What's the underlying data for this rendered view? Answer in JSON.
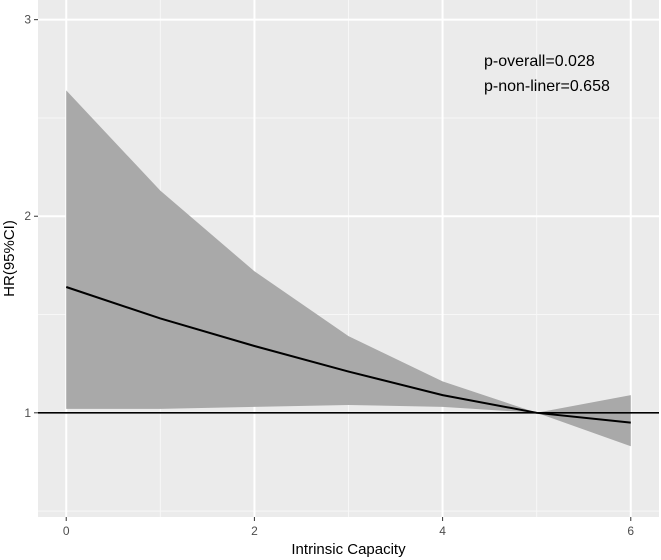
{
  "chart_data": {
    "type": "line",
    "xlabel": "Intrinsic Capacity",
    "ylabel": "HR(95%CI)",
    "xlim": [
      -0.3,
      6.3
    ],
    "ylim": [
      0.47,
      3.1
    ],
    "x_ticks": [
      0,
      2,
      4,
      6
    ],
    "x_tick_labels": [
      "0",
      "2",
      "4",
      "6"
    ],
    "y_ticks": [
      1,
      2,
      3
    ],
    "y_tick_labels": [
      "1",
      "2",
      "3"
    ],
    "grid": true,
    "background": "#ebebeb",
    "annotations": [
      "p-overall=0.028",
      "p-non-liner=0.658"
    ],
    "series": [
      {
        "x": [
          0,
          1,
          2,
          3,
          4,
          5,
          6
        ],
        "y": [
          1.64,
          1.48,
          1.34,
          1.21,
          1.09,
          1.0,
          0.95
        ],
        "lower": [
          1.02,
          1.02,
          1.03,
          1.04,
          1.03,
          1.0,
          0.83
        ],
        "upper": [
          2.64,
          2.13,
          1.72,
          1.39,
          1.16,
          1.0,
          1.09
        ],
        "line_color": "#000000",
        "band_color": "#a9a9a9"
      }
    ],
    "reference_line": {
      "y": 1,
      "color": "#000000"
    }
  }
}
